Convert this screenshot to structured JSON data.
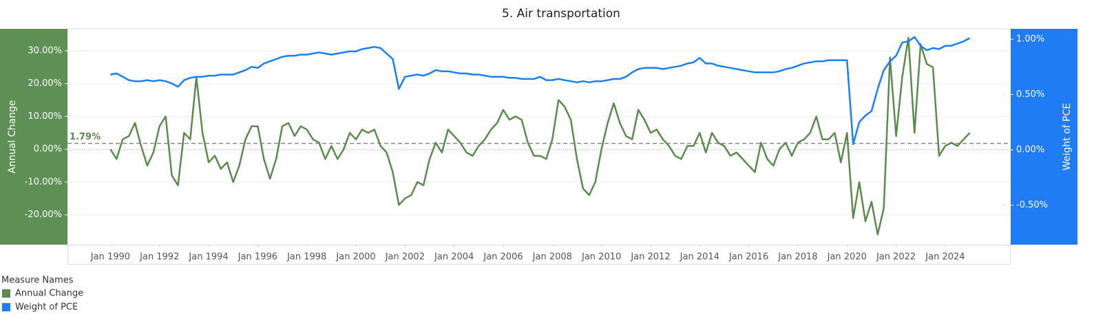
{
  "chart_data": {
    "type": "line",
    "title": "5. Air transportation",
    "x": [
      "1990-01",
      "1990-04",
      "1990-07",
      "1990-10",
      "1991-01",
      "1991-04",
      "1991-07",
      "1991-10",
      "1992-01",
      "1992-04",
      "1992-07",
      "1992-10",
      "1993-01",
      "1993-04",
      "1993-07",
      "1993-10",
      "1994-01",
      "1994-04",
      "1994-07",
      "1994-10",
      "1995-01",
      "1995-04",
      "1995-07",
      "1995-10",
      "1996-01",
      "1996-04",
      "1996-07",
      "1996-10",
      "1997-01",
      "1997-04",
      "1997-07",
      "1997-10",
      "1998-01",
      "1998-04",
      "1998-07",
      "1998-10",
      "1999-01",
      "1999-04",
      "1999-07",
      "1999-10",
      "2000-01",
      "2000-04",
      "2000-07",
      "2000-10",
      "2001-01",
      "2001-04",
      "2001-07",
      "2001-10",
      "2002-01",
      "2002-04",
      "2002-07",
      "2002-10",
      "2003-01",
      "2003-04",
      "2003-07",
      "2003-10",
      "2004-01",
      "2004-04",
      "2004-07",
      "2004-10",
      "2005-01",
      "2005-04",
      "2005-07",
      "2005-10",
      "2006-01",
      "2006-04",
      "2006-07",
      "2006-10",
      "2007-01",
      "2007-04",
      "2007-07",
      "2007-10",
      "2008-01",
      "2008-04",
      "2008-07",
      "2008-10",
      "2009-01",
      "2009-04",
      "2009-07",
      "2009-10",
      "2010-01",
      "2010-04",
      "2010-07",
      "2010-10",
      "2011-01",
      "2011-04",
      "2011-07",
      "2011-10",
      "2012-01",
      "2012-04",
      "2012-07",
      "2012-10",
      "2013-01",
      "2013-04",
      "2013-07",
      "2013-10",
      "2014-01",
      "2014-04",
      "2014-07",
      "2014-10",
      "2015-01",
      "2015-04",
      "2015-07",
      "2015-10",
      "2016-01",
      "2016-04",
      "2016-07",
      "2016-10",
      "2017-01",
      "2017-04",
      "2017-07",
      "2017-10",
      "2018-01",
      "2018-04",
      "2018-07",
      "2018-10",
      "2019-01",
      "2019-04",
      "2019-07",
      "2019-10",
      "2020-01",
      "2020-04",
      "2020-07",
      "2020-10",
      "2021-01",
      "2021-04",
      "2021-07",
      "2021-10",
      "2022-01",
      "2022-04",
      "2022-07",
      "2022-10",
      "2023-01",
      "2023-04",
      "2023-07",
      "2023-10",
      "2024-01",
      "2024-04",
      "2024-07",
      "2024-10",
      "2025-01"
    ],
    "series": [
      {
        "name": "Annual Change",
        "color": "#5b8a4f",
        "axis": "y",
        "values": [
          0,
          -3,
          3,
          4,
          8,
          1,
          -5,
          -1,
          7,
          10,
          -8,
          -11,
          5,
          3,
          22,
          5,
          -4,
          -2,
          -6,
          -4,
          -10,
          -5,
          3,
          7,
          7,
          -3,
          -9,
          -3,
          7,
          8,
          4,
          7,
          6,
          3,
          2,
          -3,
          1,
          -3,
          0,
          5,
          3,
          6,
          5,
          6,
          1,
          -1,
          -7,
          -17,
          -15,
          -14,
          -10,
          -11,
          -3,
          2,
          -1,
          6,
          4,
          2,
          -1,
          -2,
          1,
          3,
          6,
          8,
          12,
          9,
          10,
          9,
          2,
          -2,
          -2,
          -3,
          3,
          15,
          13,
          9,
          -3,
          -12,
          -14,
          -10,
          0,
          8,
          14,
          8,
          4,
          3,
          12,
          9,
          5,
          6,
          3,
          1,
          -2,
          -3,
          1,
          1,
          5,
          -1,
          5,
          2,
          1,
          -2,
          -1,
          -3,
          -5,
          -7,
          2,
          -3,
          -5,
          0,
          2,
          -2,
          2,
          3,
          5,
          10,
          3,
          3,
          5,
          -4,
          5,
          -21,
          -10,
          -22,
          -16,
          -26,
          -18,
          28,
          4,
          22,
          34,
          5,
          32,
          26,
          25,
          -2,
          1,
          2,
          1,
          3,
          5
        ]
      },
      {
        "name": "Weight of PCE",
        "color": "#1a7ff5",
        "axis": "y2",
        "values": [
          0.68,
          0.69,
          0.66,
          0.63,
          0.62,
          0.62,
          0.63,
          0.62,
          0.63,
          0.62,
          0.6,
          0.57,
          0.63,
          0.65,
          0.66,
          0.66,
          0.67,
          0.67,
          0.68,
          0.68,
          0.68,
          0.7,
          0.72,
          0.75,
          0.74,
          0.78,
          0.8,
          0.82,
          0.84,
          0.85,
          0.85,
          0.86,
          0.86,
          0.87,
          0.88,
          0.87,
          0.86,
          0.87,
          0.88,
          0.89,
          0.89,
          0.91,
          0.92,
          0.93,
          0.92,
          0.87,
          0.82,
          0.55,
          0.66,
          0.67,
          0.68,
          0.67,
          0.69,
          0.72,
          0.71,
          0.71,
          0.7,
          0.69,
          0.69,
          0.68,
          0.68,
          0.67,
          0.66,
          0.66,
          0.66,
          0.65,
          0.65,
          0.64,
          0.64,
          0.64,
          0.66,
          0.63,
          0.63,
          0.64,
          0.63,
          0.62,
          0.61,
          0.62,
          0.61,
          0.62,
          0.62,
          0.63,
          0.64,
          0.64,
          0.66,
          0.7,
          0.73,
          0.74,
          0.74,
          0.74,
          0.73,
          0.74,
          0.75,
          0.76,
          0.78,
          0.79,
          0.83,
          0.78,
          0.78,
          0.76,
          0.75,
          0.74,
          0.73,
          0.72,
          0.71,
          0.7,
          0.7,
          0.7,
          0.7,
          0.71,
          0.73,
          0.74,
          0.76,
          0.78,
          0.79,
          0.8,
          0.8,
          0.81,
          0.81,
          0.81,
          0.81,
          0.05,
          0.25,
          0.31,
          0.35,
          0.55,
          0.72,
          0.8,
          0.85,
          0.97,
          0.98,
          1.02,
          0.94,
          0.9,
          0.92,
          0.91,
          0.94,
          0.94,
          0.96,
          0.98,
          1.01
        ]
      }
    ],
    "xlim": [
      "1988-04",
      "2026-09"
    ],
    "xticks": [
      {
        "value": "1990-01",
        "label": "Jan 1990"
      },
      {
        "value": "1992-01",
        "label": "Jan 1992"
      },
      {
        "value": "1994-01",
        "label": "Jan 1994"
      },
      {
        "value": "1996-01",
        "label": "Jan 1996"
      },
      {
        "value": "1998-01",
        "label": "Jan 1998"
      },
      {
        "value": "2000-01",
        "label": "Jan 2000"
      },
      {
        "value": "2002-01",
        "label": "Jan 2002"
      },
      {
        "value": "2004-01",
        "label": "Jan 2004"
      },
      {
        "value": "2006-01",
        "label": "Jan 2006"
      },
      {
        "value": "2008-01",
        "label": "Jan 2008"
      },
      {
        "value": "2010-01",
        "label": "Jan 2010"
      },
      {
        "value": "2012-01",
        "label": "Jan 2012"
      },
      {
        "value": "2014-01",
        "label": "Jan 2014"
      },
      {
        "value": "2016-01",
        "label": "Jan 2016"
      },
      {
        "value": "2018-01",
        "label": "Jan 2018"
      },
      {
        "value": "2020-01",
        "label": "Jan 2020"
      },
      {
        "value": "2022-01",
        "label": "Jan 2022"
      },
      {
        "value": "2024-01",
        "label": "Jan 2024"
      }
    ],
    "ylabel": "Annual Change",
    "ylim": [
      -29.1,
      36.7
    ],
    "yticks": [
      {
        "value": -20,
        "label": "-20.00%"
      },
      {
        "value": -10,
        "label": "-10.00%"
      },
      {
        "value": 0,
        "label": "0.00%"
      },
      {
        "value": 10,
        "label": "10.00%"
      },
      {
        "value": 20,
        "label": "20.00%"
      },
      {
        "value": 30,
        "label": "30.00%"
      }
    ],
    "y2label": "Weight of PCE",
    "y2lim": [
      -0.857,
      1.093
    ],
    "y2ticks": [
      {
        "value": -0.5,
        "label": "-0.50%"
      },
      {
        "value": 0,
        "label": "0.00%"
      },
      {
        "value": 0.5,
        "label": "0.50%"
      },
      {
        "value": 1,
        "label": "1.00%"
      }
    ],
    "reference_line": {
      "value": 1.79,
      "label": "1.79%"
    },
    "grid": true,
    "legend_title": "Measure Names",
    "legend_position": "bottom-left"
  }
}
